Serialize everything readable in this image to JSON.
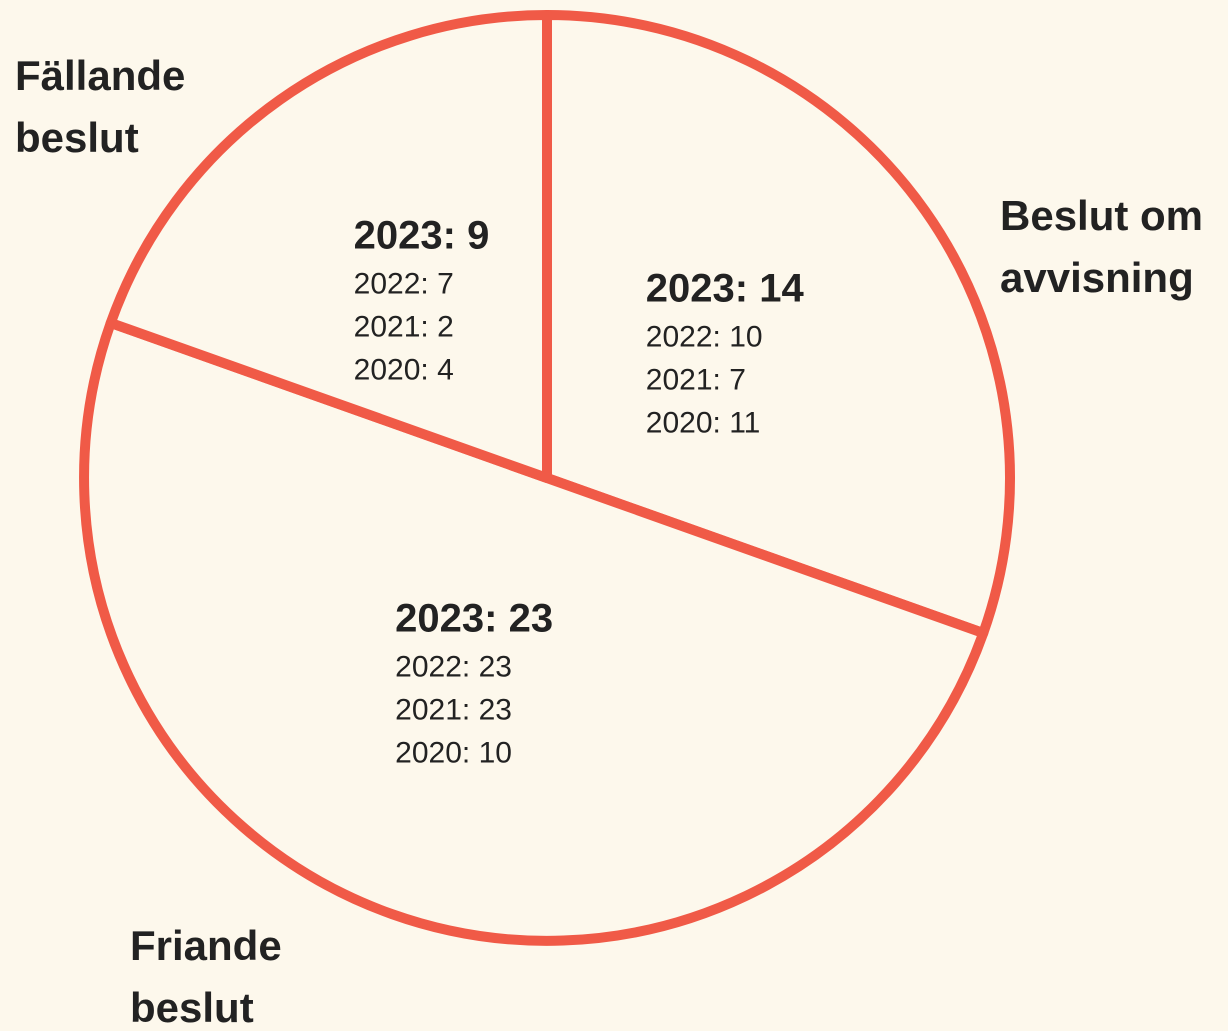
{
  "chart_data": {
    "type": "pie",
    "categories": [
      "Beslut om avvisning",
      "Friande beslut",
      "Fällande beslut"
    ],
    "values": [
      14,
      23,
      9
    ],
    "value_labels": [
      "2023: 14",
      "2023: 23",
      "2023: 9"
    ],
    "annotations": [
      [
        "2022: 10",
        "2021: 7",
        "2020: 11"
      ],
      [
        "2022: 23",
        "2021: 23",
        "2020: 10"
      ],
      [
        "2022: 7",
        "2021: 2",
        "2020: 4"
      ]
    ],
    "color": "#f05a47",
    "background": "#fdf8ec"
  }
}
